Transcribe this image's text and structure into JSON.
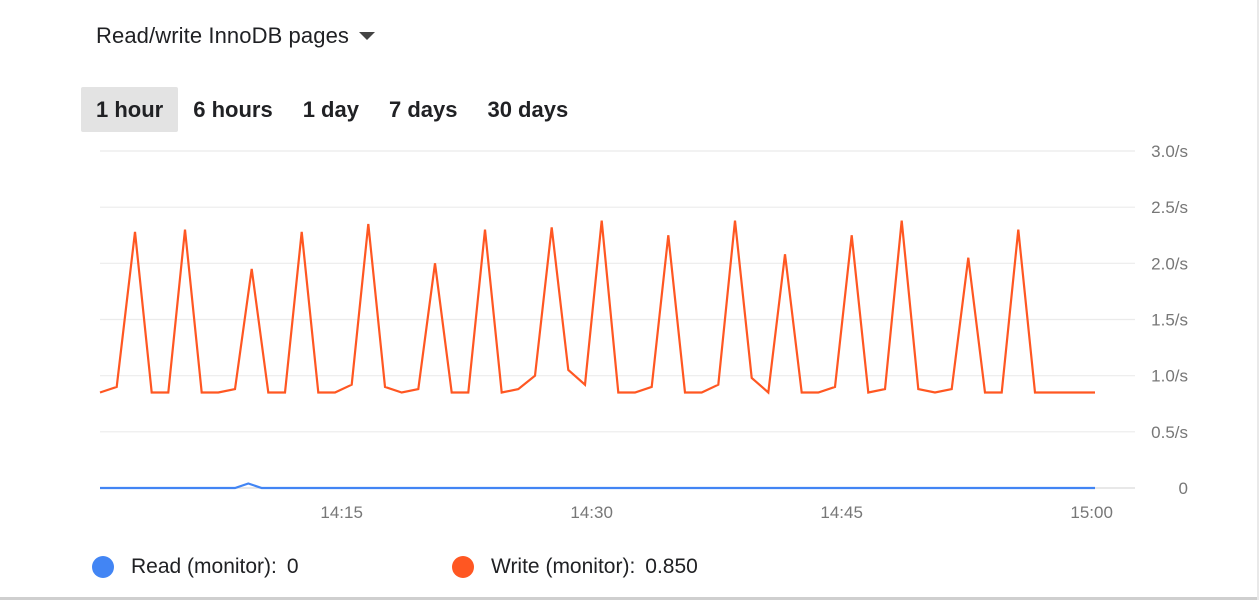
{
  "metric": {
    "title": "Read/write InnoDB pages",
    "caret_icon": "caret-down-icon"
  },
  "ranges": [
    {
      "label": "1 hour",
      "active": true
    },
    {
      "label": "6 hours",
      "active": false
    },
    {
      "label": "1 day",
      "active": false
    },
    {
      "label": "7 days",
      "active": false
    },
    {
      "label": "30 days",
      "active": false
    }
  ],
  "legend": [
    {
      "name": "Read (monitor):",
      "value": "0",
      "color": "#4285f4"
    },
    {
      "name": "Write (monitor):",
      "value": "0.850",
      "color": "#ff5722"
    }
  ],
  "chart_data": {
    "type": "line",
    "x_tick_labels": [
      "14:15",
      "14:30",
      "14:45",
      "15:00"
    ],
    "x_tick_minutes": [
      15,
      30,
      45,
      60
    ],
    "xlim_minutes": [
      0.5,
      60.5
    ],
    "y_tick_labels": [
      "0",
      "0.5/s",
      "1.0/s",
      "1.5/s",
      "2.0/s",
      "2.5/s",
      "3.0/s"
    ],
    "y_tick_values": [
      0,
      0.5,
      1.0,
      1.5,
      2.0,
      2.5,
      3.0
    ],
    "ylim": [
      0,
      3.0
    ],
    "grid": true,
    "series": [
      {
        "name": "Read (monitor)",
        "color": "#4285f4",
        "x": [
          0.5,
          8.6,
          9.4,
          10.2,
          60.2
        ],
        "y": [
          0,
          0,
          0.04,
          0,
          0
        ]
      },
      {
        "name": "Write (monitor)",
        "color": "#ff5722",
        "x": [
          0.5,
          1.5,
          2.6,
          3.6,
          4.6,
          5.6,
          6.6,
          7.6,
          8.6,
          9.6,
          10.6,
          11.6,
          12.6,
          13.6,
          14.6,
          15.6,
          16.6,
          17.6,
          18.6,
          19.6,
          20.6,
          21.6,
          22.6,
          23.6,
          24.6,
          25.6,
          26.6,
          27.6,
          28.6,
          29.6,
          30.6,
          31.6,
          32.6,
          33.6,
          34.6,
          35.6,
          36.6,
          37.6,
          38.6,
          39.6,
          40.6,
          41.6,
          42.6,
          43.6,
          44.6,
          45.6,
          46.6,
          47.6,
          48.6,
          49.6,
          50.6,
          51.6,
          52.6,
          53.6,
          54.6,
          55.6,
          56.6,
          57.6,
          58.6,
          59.6,
          60.2
        ],
        "y": [
          0.85,
          0.9,
          2.28,
          0.85,
          0.85,
          2.3,
          0.85,
          0.85,
          0.88,
          1.95,
          0.85,
          0.85,
          2.28,
          0.85,
          0.85,
          0.92,
          2.35,
          0.9,
          0.85,
          0.88,
          2.0,
          0.85,
          0.85,
          2.3,
          0.85,
          0.88,
          1.0,
          2.32,
          1.05,
          0.92,
          2.38,
          0.85,
          0.85,
          0.9,
          2.25,
          0.85,
          0.85,
          0.92,
          2.38,
          0.98,
          0.85,
          2.08,
          0.85,
          0.85,
          0.9,
          2.25,
          0.85,
          0.88,
          2.38,
          0.88,
          0.85,
          0.88,
          2.05,
          0.85,
          0.85,
          2.3,
          0.85,
          0.85,
          0.85,
          0.85,
          0.85
        ]
      }
    ]
  }
}
